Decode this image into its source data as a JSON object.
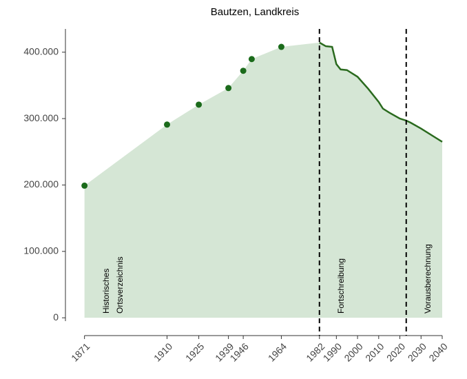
{
  "chart_data": {
    "type": "line",
    "title": "Bautzen, Landkreis",
    "xlim": [
      1862,
      2040
    ],
    "ylim": [
      -5000,
      435000
    ],
    "xticks": [
      1871,
      1910,
      1925,
      1939,
      1946,
      1964,
      1982,
      1990,
      2000,
      2010,
      2020,
      2030,
      2040
    ],
    "yticks": [
      {
        "value": 0,
        "label": "0"
      },
      {
        "value": 100000,
        "label": "100.000"
      },
      {
        "value": 200000,
        "label": "200.000"
      },
      {
        "value": 300000,
        "label": "300.000"
      },
      {
        "value": 400000,
        "label": "400.000"
      }
    ],
    "area_color": "#d5e6d5",
    "points": {
      "color": "#1b6b1b",
      "x": [
        1871,
        1910,
        1925,
        1939,
        1946,
        1950,
        1964
      ],
      "values": [
        199000,
        291000,
        321000,
        346000,
        372000,
        389600,
        408000
      ]
    },
    "line": {
      "color": "#2a6a1e",
      "x": [
        1982,
        1985,
        1988,
        1990,
        1992,
        1995,
        2000,
        2005,
        2010,
        2012,
        2015,
        2020,
        2023,
        2025,
        2030,
        2040
      ],
      "values": [
        414500,
        409000,
        408000,
        382000,
        374000,
        373000,
        363000,
        345000,
        325000,
        315000,
        309000,
        300000,
        297000,
        294000,
        285000,
        265000
      ]
    },
    "dividers": [
      1982,
      2023
    ],
    "segments": [
      {
        "label": [
          "Historisches",
          "Ortsverzeichnis"
        ]
      },
      {
        "label": [
          "Fortschreibung"
        ]
      },
      {
        "label": [
          "Vorausberechnung"
        ]
      }
    ]
  }
}
